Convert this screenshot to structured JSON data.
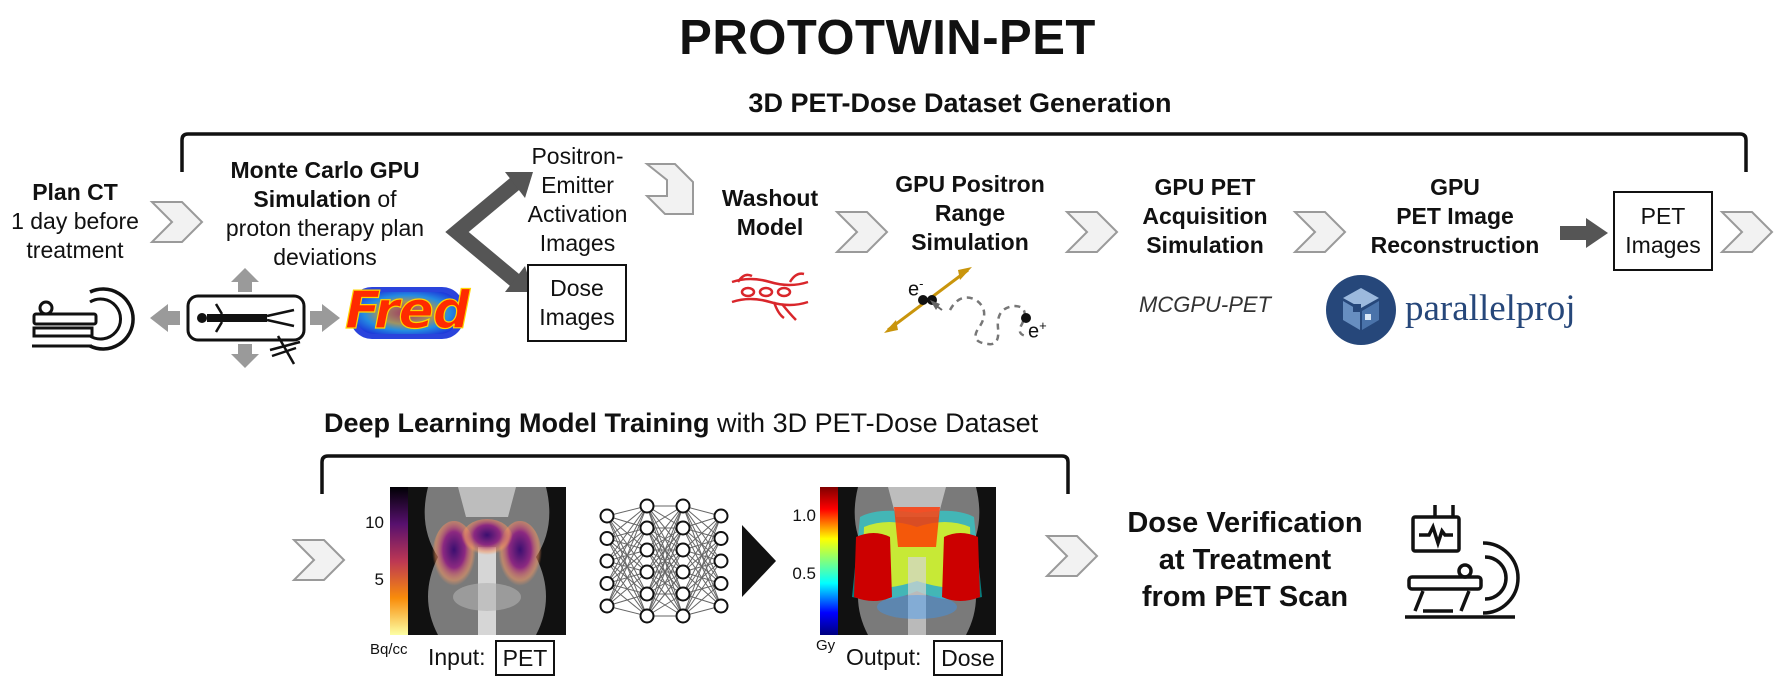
{
  "title": "PROTOTWIN-PET",
  "top_section": {
    "heading": "3D PET-Dose Dataset Generation",
    "plan_ct": {
      "bold": "Plan CT",
      "line2": "1 day before",
      "line3": "treatment"
    },
    "monte_carlo": {
      "l1_bold": "Monte Carlo GPU",
      "l2_bold": "Simulation",
      "l2_rest": " of",
      "l3": "proton therapy plan",
      "l4": "deviations"
    },
    "fred_logo": "Fred",
    "positron": {
      "l1": "Positron-",
      "l2": "Emitter",
      "l3": "Activation",
      "l4": "Images"
    },
    "dose_images": {
      "l1": "Dose",
      "l2": "Images"
    },
    "washout": {
      "l1": "Washout",
      "l2": "Model"
    },
    "positron_range": {
      "l1": "GPU Positron",
      "l2": "Range",
      "l3": "Simulation",
      "electron": "e",
      "electron_sup": "-",
      "positron_label": "e",
      "positron_sup": "+"
    },
    "pet_acq": {
      "l1": "GPU PET",
      "l2": "Acquisition",
      "l3": "Simulation",
      "tool": "MCGPU-PET"
    },
    "pet_recon": {
      "l1": "GPU",
      "l2": "PET Image",
      "l3": "Reconstruction",
      "tool": "parallelproj"
    },
    "pet_images": {
      "l1": "PET",
      "l2": "Images"
    }
  },
  "bottom_section": {
    "heading_bold": "Deep Learning Model Training",
    "heading_rest": " with 3D PET-Dose Dataset",
    "input": {
      "prefix": "Input:",
      "box": "PET",
      "unit": "Bq/cc",
      "ticks": [
        "10",
        "5"
      ]
    },
    "output": {
      "prefix": "Output:",
      "box": "Dose",
      "unit": "Gy",
      "ticks": [
        "1.0",
        "0.5"
      ]
    },
    "verification": {
      "l1": "Dose Verification",
      "l2": "at Treatment",
      "l3": "from PET Scan"
    }
  },
  "colors": {
    "chevron_fill": "#f2f2f2",
    "chevron_stroke": "#9a9a9a",
    "arrow_dark": "#555555",
    "washout_red": "#d9262b",
    "gold": "#c9950c",
    "parallelproj_blue": "#26477a"
  }
}
